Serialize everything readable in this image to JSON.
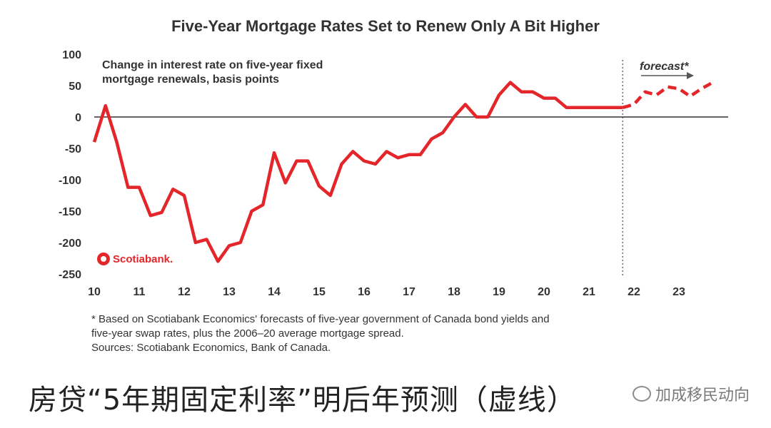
{
  "title": "Five-Year Mortgage Rates Set to Renew Only A Bit Higher",
  "inner_label_line1": "Change in interest rate on five-year fixed",
  "inner_label_line2": "mortgage renewals, basis points",
  "forecast_label": "forecast*",
  "logo_text": "Scotiabank.",
  "footnote_line1": "* Based on Scotiabank Economics' forecasts of five-year government of Canada bond yields and",
  "footnote_line2": "five-year swap rates, plus the 2006–20 average mortgage spread.",
  "footnote_line3": "Sources: Scotiabank Economics, Bank of Canada.",
  "caption": "房贷“5年期固定利率”明后年预测（虚线）",
  "watermark": "加成移民动向",
  "colors": {
    "series": "#e4262a",
    "axis": "#333333"
  },
  "chart_data": {
    "type": "line",
    "title": "Five-Year Mortgage Rates Set to Renew Only A Bit Higher",
    "ylabel": "Change in interest rate on five-year fixed mortgage renewals, basis points",
    "ylim": [
      -250,
      100
    ],
    "yticks": [
      100,
      50,
      0,
      -50,
      -100,
      -150,
      -200,
      -250
    ],
    "xlim": [
      2010,
      2024
    ],
    "xticks": [
      {
        "value": 2010,
        "label": "10"
      },
      {
        "value": 2011,
        "label": "11"
      },
      {
        "value": 2012,
        "label": "12"
      },
      {
        "value": 2013,
        "label": "13"
      },
      {
        "value": 2014,
        "label": "14"
      },
      {
        "value": 2015,
        "label": "15"
      },
      {
        "value": 2016,
        "label": "16"
      },
      {
        "value": 2017,
        "label": "17"
      },
      {
        "value": 2018,
        "label": "18"
      },
      {
        "value": 2019,
        "label": "19"
      },
      {
        "value": 2020,
        "label": "20"
      },
      {
        "value": 2021,
        "label": "21"
      },
      {
        "value": 2022,
        "label": "22"
      },
      {
        "value": 2023,
        "label": "23"
      }
    ],
    "forecast_start": 2021.75,
    "series": [
      {
        "style": "solid",
        "x": [
          2010.0,
          2010.25,
          2010.5,
          2010.75,
          2011.0,
          2011.25,
          2011.5,
          2011.75,
          2012.0,
          2012.25,
          2012.5,
          2012.75,
          2013.0,
          2013.25,
          2013.5,
          2013.75,
          2014.0,
          2014.25,
          2014.5,
          2014.75,
          2015.0,
          2015.25,
          2015.5,
          2015.75,
          2016.0,
          2016.25,
          2016.5,
          2016.75,
          2017.0,
          2017.25,
          2017.5,
          2017.75,
          2018.0,
          2018.25,
          2018.5,
          2018.75,
          2019.0,
          2019.25,
          2019.5,
          2019.75,
          2020.0,
          2020.25,
          2020.5,
          2020.75,
          2021.0,
          2021.25,
          2021.5,
          2021.75
        ],
        "values": [
          -40,
          18,
          -40,
          -112,
          -112,
          -157,
          -152,
          -115,
          -125,
          -200,
          -195,
          -230,
          -205,
          -200,
          -150,
          -140,
          -57,
          -105,
          -70,
          -70,
          -110,
          -125,
          -75,
          -55,
          -70,
          -75,
          -55,
          -65,
          -60,
          -60,
          -35,
          -25,
          0,
          20,
          0,
          0,
          35,
          55,
          40,
          40,
          30,
          30,
          15,
          15,
          15,
          15,
          15,
          15
        ]
      },
      {
        "style": "dashed",
        "x": [
          2021.75,
          2022.0,
          2022.25,
          2022.5,
          2022.75,
          2023.0,
          2023.25,
          2023.5,
          2023.75
        ],
        "values": [
          15,
          20,
          40,
          35,
          48,
          45,
          33,
          45,
          55
        ]
      }
    ]
  }
}
